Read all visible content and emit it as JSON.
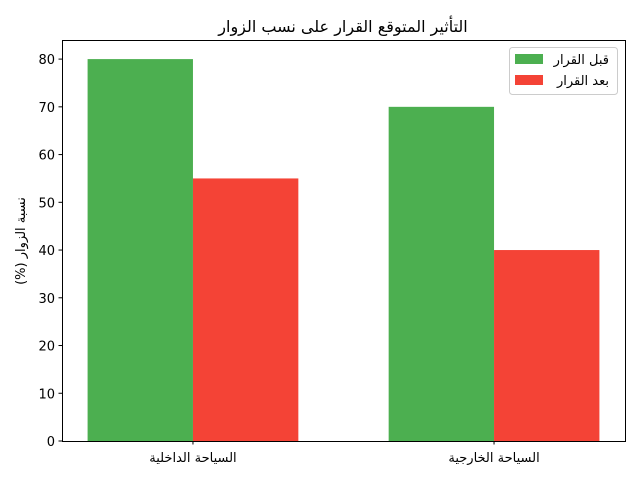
{
  "chart_data": {
    "type": "bar",
    "title": "التأثير المتوقع القرار على نسب الزوار",
    "xlabel": "",
    "ylabel": "نسبة الزوار (%)",
    "categories": [
      "السياحة الداخلية",
      "السياحة الخارجية"
    ],
    "series": [
      {
        "name": "قبل القرار",
        "values": [
          80,
          70
        ],
        "color": "#4caf50"
      },
      {
        "name": "بعد القرار",
        "values": [
          55,
          40
        ],
        "color": "#f44336"
      }
    ],
    "ylim": [
      0,
      84
    ],
    "yticks": [
      0,
      10,
      20,
      30,
      40,
      50,
      60,
      70,
      80
    ],
    "grid": false,
    "legend": "top-right"
  }
}
